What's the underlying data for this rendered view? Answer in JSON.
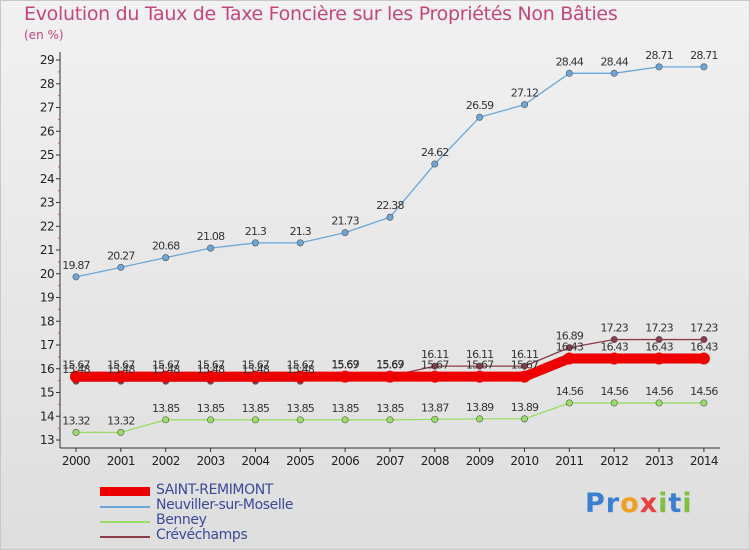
{
  "chart_data": {
    "type": "line",
    "title": "Evolution du Taux de Taxe Foncière sur les Propriétés Non Bâties",
    "unit_label": "(en %)",
    "x": [
      "2000",
      "2001",
      "2002",
      "2003",
      "2004",
      "2005",
      "2006",
      "2007",
      "2008",
      "2009",
      "2010",
      "2011",
      "2012",
      "2013",
      "2014"
    ],
    "y_ticks": [
      "13",
      "14",
      "15",
      "16",
      "17",
      "18",
      "19",
      "20",
      "21",
      "22",
      "23",
      "24",
      "25",
      "26",
      "27",
      "28",
      "29"
    ],
    "ylim": [
      13,
      29
    ],
    "grid": false,
    "legend_position": "bottom-left",
    "series": [
      {
        "name": "SAINT-REMIMONT",
        "color": "#ee0000",
        "values": [
          15.67,
          15.67,
          15.67,
          15.67,
          15.67,
          15.67,
          15.67,
          15.67,
          15.67,
          15.67,
          15.67,
          16.43,
          16.43,
          16.43,
          16.43
        ],
        "labels": []
      },
      {
        "name": "Neuviller-sur-Moselle",
        "color": "#6aa6d8",
        "values": [
          19.87,
          20.27,
          20.68,
          21.08,
          21.3,
          21.3,
          21.73,
          22.38,
          24.62,
          26.59,
          27.12,
          28.44,
          28.44,
          28.71,
          28.71
        ],
        "labels": [
          "19.87",
          "20.27",
          "20.68",
          "21.08",
          "21.3",
          "21.3",
          "21.73",
          "22.38",
          "24.62",
          "26.59",
          "27.12",
          "28.44",
          "28.44",
          "28.71",
          "28.71"
        ]
      },
      {
        "name": "Benney",
        "color": "#99dd66",
        "values": [
          13.32,
          13.32,
          13.85,
          13.85,
          13.85,
          13.85,
          13.85,
          13.85,
          13.87,
          13.89,
          13.89,
          14.56,
          14.56,
          14.56,
          14.56
        ],
        "labels": [
          "13.32",
          "13.32",
          "13.85",
          "13.85",
          "13.85",
          "13.85",
          "13.85",
          "13.85",
          "13.87",
          "13.89",
          "13.89",
          "14.56",
          "14.56",
          "14.56",
          "14.56"
        ]
      },
      {
        "name": "Crévéchamps",
        "color": "#8b3b4a",
        "values": [
          15.48,
          15.48,
          15.48,
          15.48,
          15.48,
          15.48,
          15.69,
          15.69,
          16.11,
          16.11,
          16.11,
          16.89,
          17.23,
          17.23,
          17.23
        ],
        "labels": [
          "15.48",
          "15.48",
          "15.48",
          "15.48",
          "15.48",
          "15.48",
          "15.69",
          "15.69",
          "16.11",
          "16.11",
          "16.11",
          "16.89",
          "17.23",
          "17.23",
          "17.23"
        ]
      }
    ],
    "extra_labels": [
      {
        "series": "SAINT-REMIMONT",
        "labels": [
          "15.67",
          "15.67",
          "15.67",
          "15.67",
          "15.67",
          "15.67",
          "15.67",
          "15.67",
          "15.67",
          "15.67",
          "15.67",
          "16.43",
          "16.43",
          "16.43",
          "16.43"
        ]
      }
    ]
  },
  "logo": {
    "letters": [
      "P",
      "r",
      "o",
      "x",
      "i",
      "t",
      "i"
    ],
    "colors": [
      "#3a7fd0",
      "#3a7fd0",
      "#f0a020",
      "#e84040",
      "#80c040",
      "#3a7fd0",
      "#80c040"
    ]
  }
}
